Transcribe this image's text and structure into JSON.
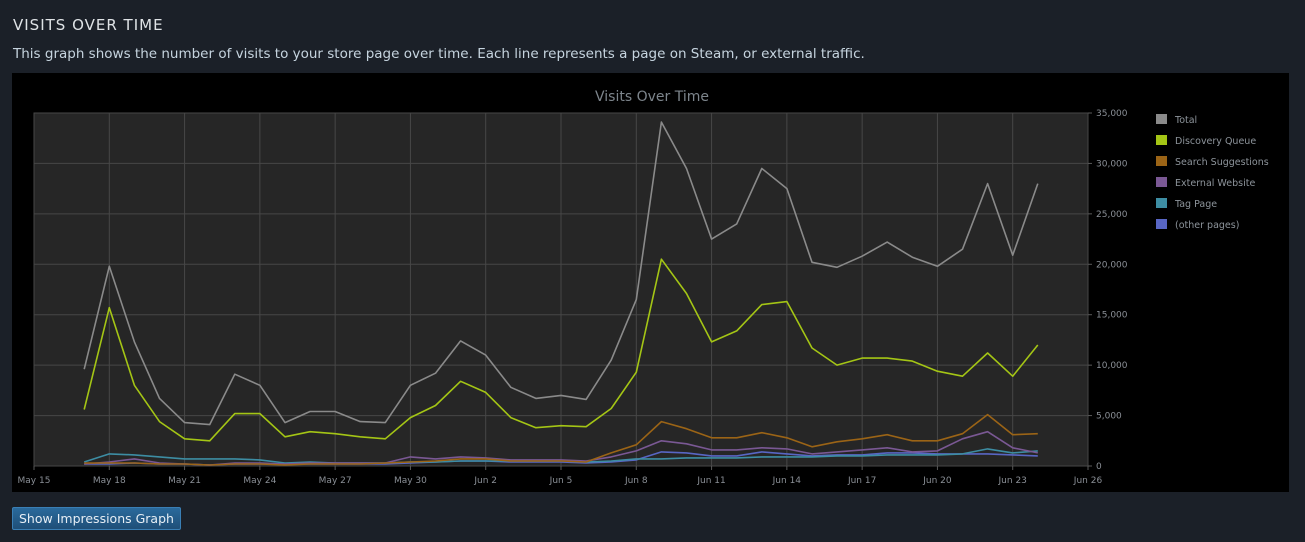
{
  "section": {
    "title": "VISITS OVER TIME",
    "description": "This graph shows the number of visits to your store page over time. Each line represents a page on Steam, or external traffic."
  },
  "button": {
    "label": "Show Impressions Graph"
  },
  "chart_data": {
    "type": "line",
    "title": "Visits Over Time",
    "xlabel": "",
    "ylabel": "",
    "x_ticks": [
      "May 15",
      "May 18",
      "May 21",
      "May 24",
      "May 27",
      "May 30",
      "Jun 2",
      "Jun 5",
      "Jun 8",
      "Jun 11",
      "Jun 14",
      "Jun 17",
      "Jun 20",
      "Jun 23",
      "Jun 26"
    ],
    "y_ticks": [
      "0",
      "5,000",
      "10,000",
      "15,000",
      "20,000",
      "25,000",
      "30,000",
      "35,000"
    ],
    "ylim": [
      0,
      35000
    ],
    "grid": true,
    "legend_position": "right",
    "x": [
      "May 17",
      "May 18",
      "May 19",
      "May 20",
      "May 21",
      "May 22",
      "May 23",
      "May 24",
      "May 25",
      "May 26",
      "May 27",
      "May 28",
      "May 29",
      "May 30",
      "May 31",
      "Jun 1",
      "Jun 2",
      "Jun 3",
      "Jun 4",
      "Jun 5",
      "Jun 6",
      "Jun 7",
      "Jun 8",
      "Jun 9",
      "Jun 10",
      "Jun 11",
      "Jun 12",
      "Jun 13",
      "Jun 14",
      "Jun 15",
      "Jun 16",
      "Jun 17",
      "Jun 18",
      "Jun 19",
      "Jun 20",
      "Jun 21",
      "Jun 22",
      "Jun 23",
      "Jun 24"
    ],
    "series": [
      {
        "name": "Total",
        "color": "#8a8a8a",
        "values": [
          9600,
          19800,
          12300,
          6700,
          4300,
          4100,
          9100,
          8000,
          4300,
          5400,
          5400,
          4400,
          4300,
          8000,
          9200,
          12400,
          11000,
          7800,
          6700,
          7000,
          6600,
          10500,
          16500,
          34100,
          29500,
          22500,
          24000,
          29500,
          27500,
          20200,
          19700,
          20800,
          22200,
          20700,
          19800,
          21500,
          28000,
          20900,
          28000
        ]
      },
      {
        "name": "Discovery Queue",
        "color": "#a4c515",
        "values": [
          5600,
          15700,
          8000,
          4400,
          2700,
          2500,
          5200,
          5200,
          2900,
          3400,
          3200,
          2900,
          2700,
          4800,
          6000,
          8400,
          7300,
          4800,
          3800,
          4000,
          3900,
          5700,
          9300,
          20500,
          17100,
          12300,
          13400,
          16000,
          16300,
          11700,
          10000,
          10700,
          10700,
          10400,
          9400,
          8900,
          11200,
          8900,
          12000
        ]
      },
      {
        "name": "Search Suggestions",
        "color": "#9b6416",
        "values": [
          300,
          300,
          300,
          200,
          200,
          100,
          200,
          200,
          100,
          200,
          200,
          200,
          300,
          400,
          500,
          700,
          700,
          500,
          500,
          500,
          400,
          1300,
          2100,
          4400,
          3700,
          2800,
          2800,
          3300,
          2800,
          1900,
          2400,
          2700,
          3100,
          2500,
          2500,
          3200,
          5100,
          3100,
          3200
        ]
      },
      {
        "name": "External Website",
        "color": "#7a5894",
        "values": [
          200,
          400,
          700,
          300,
          200,
          100,
          300,
          300,
          200,
          300,
          300,
          300,
          300,
          900,
          700,
          900,
          800,
          600,
          600,
          600,
          500,
          900,
          1500,
          2500,
          2200,
          1600,
          1600,
          1800,
          1700,
          1200,
          1400,
          1600,
          1800,
          1400,
          1500,
          2700,
          3400,
          1800,
          1300
        ]
      },
      {
        "name": "Tag Page",
        "color": "#3d8da3",
        "values": [
          400,
          1200,
          1100,
          900,
          700,
          700,
          700,
          600,
          300,
          400,
          300,
          300,
          300,
          400,
          400,
          500,
          500,
          500,
          500,
          500,
          400,
          500,
          700,
          700,
          800,
          800,
          800,
          900,
          900,
          900,
          1000,
          1000,
          1100,
          1100,
          1100,
          1200,
          1700,
          1300,
          1500
        ]
      },
      {
        "name": "(other pages)",
        "color": "#5866c4",
        "values": [
          200,
          200,
          300,
          200,
          200,
          100,
          200,
          200,
          200,
          200,
          200,
          200,
          200,
          300,
          400,
          500,
          500,
          400,
          400,
          400,
          300,
          400,
          600,
          1400,
          1300,
          1000,
          1000,
          1400,
          1200,
          1000,
          1100,
          1100,
          1300,
          1300,
          1200,
          1200,
          1200,
          1100,
          1000
        ]
      }
    ]
  }
}
